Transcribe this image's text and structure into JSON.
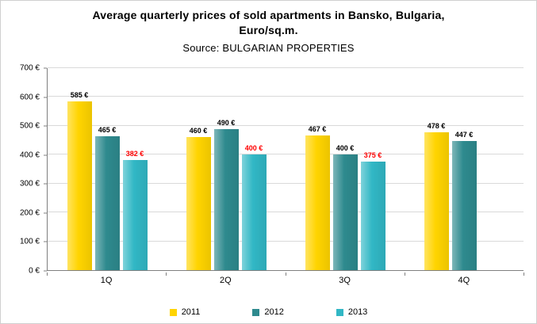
{
  "title": "Average quarterly prices of sold apartments in Bansko, Bulgaria, Euro/sq.m.",
  "subtitle": "Source: BULGARIAN PROPERTIES",
  "chart_data": {
    "type": "bar",
    "title": "Average quarterly prices of sold apartments in Bansko, Bulgaria, Euro/sq.m.",
    "subtitle": "Source: BULGARIAN PROPERTIES",
    "categories": [
      "1Q",
      "2Q",
      "3Q",
      "4Q"
    ],
    "series": [
      {
        "name": "2011",
        "color": "#FFD400",
        "label_color": "#000000",
        "values": [
          585,
          460,
          467,
          478
        ]
      },
      {
        "name": "2012",
        "color": "#2E8A8E",
        "label_color": "#000000",
        "values": [
          465,
          490,
          400,
          447
        ]
      },
      {
        "name": "2013",
        "color": "#31B7C5",
        "label_color": "#FF0000",
        "values": [
          382,
          400,
          375,
          null
        ]
      }
    ],
    "ylim": [
      0,
      700
    ],
    "ytick_labels": [
      "0 €",
      "100 €",
      "200 €",
      "300 €",
      "400 €",
      "500 €",
      "600 €",
      "700 €"
    ],
    "value_suffix": " €",
    "grid": true,
    "legend_position": "bottom",
    "gridline_color": "#D9D9D9",
    "axis_color": "#7F7F7F"
  }
}
